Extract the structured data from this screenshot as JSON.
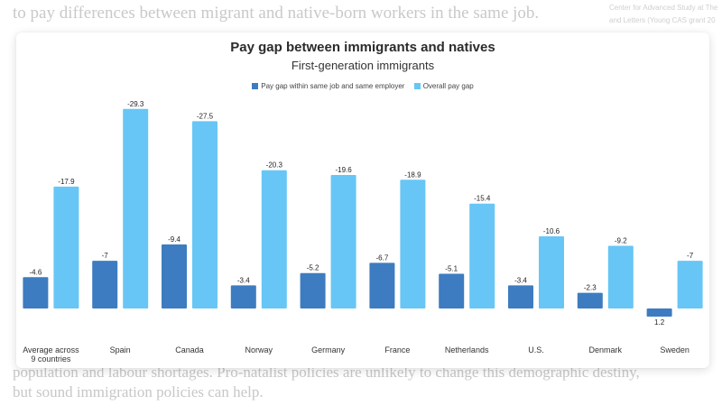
{
  "background": {
    "top_text": "to pay differences between migrant and native-born workers in the same job.",
    "top_right_lines": [
      "Center for Advanced Study at The",
      "and Letters (Young CAS grant 20"
    ],
    "bottom_text": "population and labour shortages. Pro-natalist policies are unlikely to change this demographic destiny, but sound immigration policies can help."
  },
  "colors": {
    "series1": "#3d7cc0",
    "series2": "#67c6f5"
  },
  "chart_data": {
    "type": "bar",
    "title": "Pay gap between immigrants and natives",
    "subtitle": "First-generation immigrants",
    "categories": [
      "Average across 9 countries",
      "Spain",
      "Canada",
      "Norway",
      "Germany",
      "France",
      "Netherlands",
      "U.S.",
      "Denmark",
      "Sweden"
    ],
    "series": [
      {
        "name": "Pay gap within same job and same employer",
        "values": [
          -4.6,
          -7,
          -9.4,
          -3.4,
          -5.2,
          -6.7,
          -5.1,
          -3.4,
          -2.3,
          1.2
        ],
        "labels": [
          "-4.6",
          "-7",
          "-9.4",
          "-3.4",
          "-5.2",
          "-6.7",
          "-5.1",
          "-3.4",
          "-2.3",
          "1.2"
        ]
      },
      {
        "name": "Overall pay gap",
        "values": [
          -17.9,
          -29.3,
          -27.5,
          -20.3,
          -19.6,
          -18.9,
          -15.4,
          -10.6,
          -9.2,
          -7
        ],
        "labels": [
          "-17.9",
          "-29.3",
          "-27.5",
          "-20.3",
          "-19.6",
          "-18.9",
          "-15.4",
          "-10.6",
          "-9.2",
          "-7"
        ]
      }
    ],
    "legend": "top",
    "grid": false
  }
}
